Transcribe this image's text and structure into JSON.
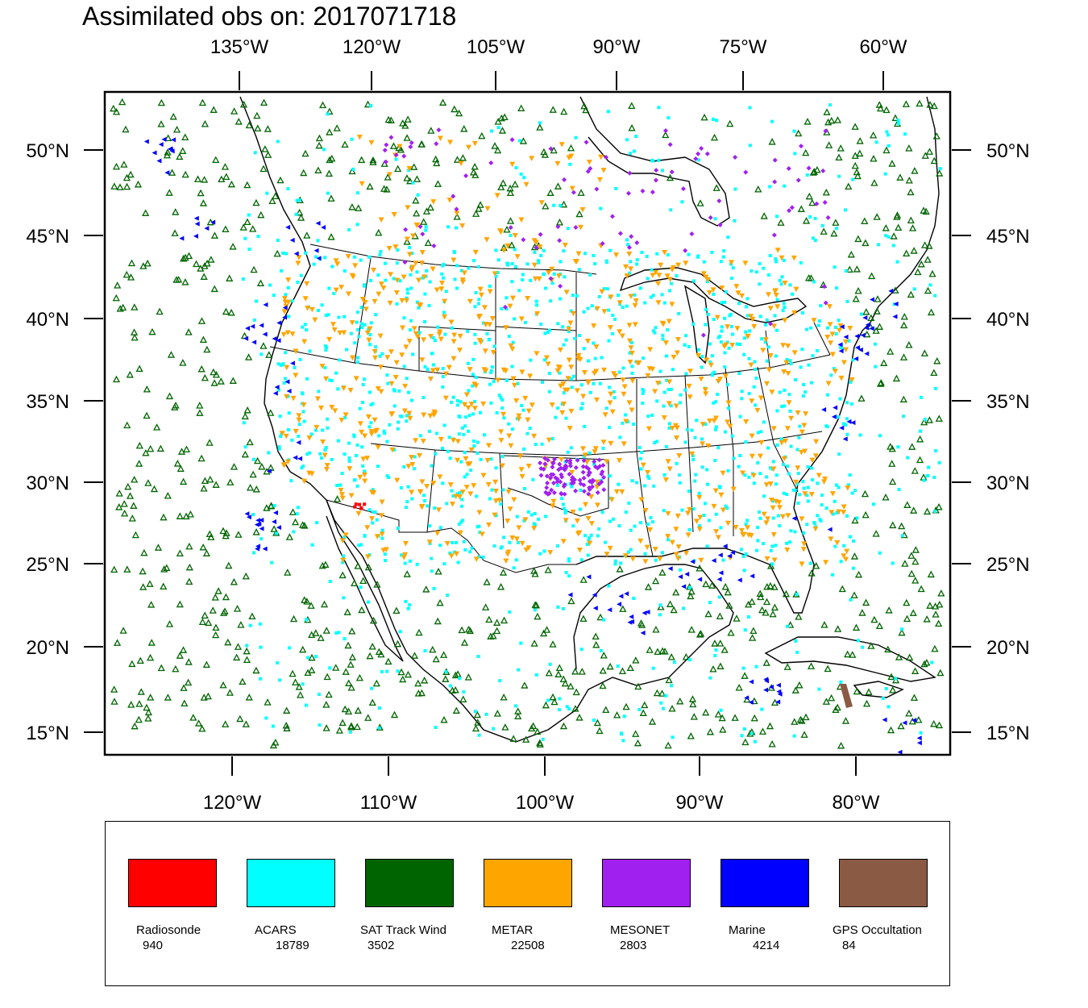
{
  "title": "Assimilated obs on: 2017071718",
  "top_lon_labels": [
    "135°W",
    "120°W",
    "105°W",
    "90°W",
    "75°W",
    "60°W"
  ],
  "bottom_lon_labels": [
    "120°W",
    "110°W",
    "100°W",
    "90°W",
    "80°W"
  ],
  "lat_labels": [
    "50°N",
    "45°N",
    "40°N",
    "35°N",
    "30°N",
    "25°N",
    "20°N",
    "15°N"
  ],
  "legend": [
    {
      "name": "Radiosonde",
      "count": "940",
      "color": "#ff0000"
    },
    {
      "name": "ACARS",
      "count": "18789",
      "color": "#00ffff"
    },
    {
      "name": "SAT Track Wind",
      "count": "3502",
      "color": "#006400"
    },
    {
      "name": "METAR",
      "count": "22508",
      "color": "#ffa500"
    },
    {
      "name": "MESONET",
      "count": "2803",
      "color": "#a020f0"
    },
    {
      "name": "Marine",
      "count": "4214",
      "color": "#0000ff"
    },
    {
      "name": "GPS Occultation",
      "count": "84",
      "color": "#8b5a44"
    }
  ]
}
